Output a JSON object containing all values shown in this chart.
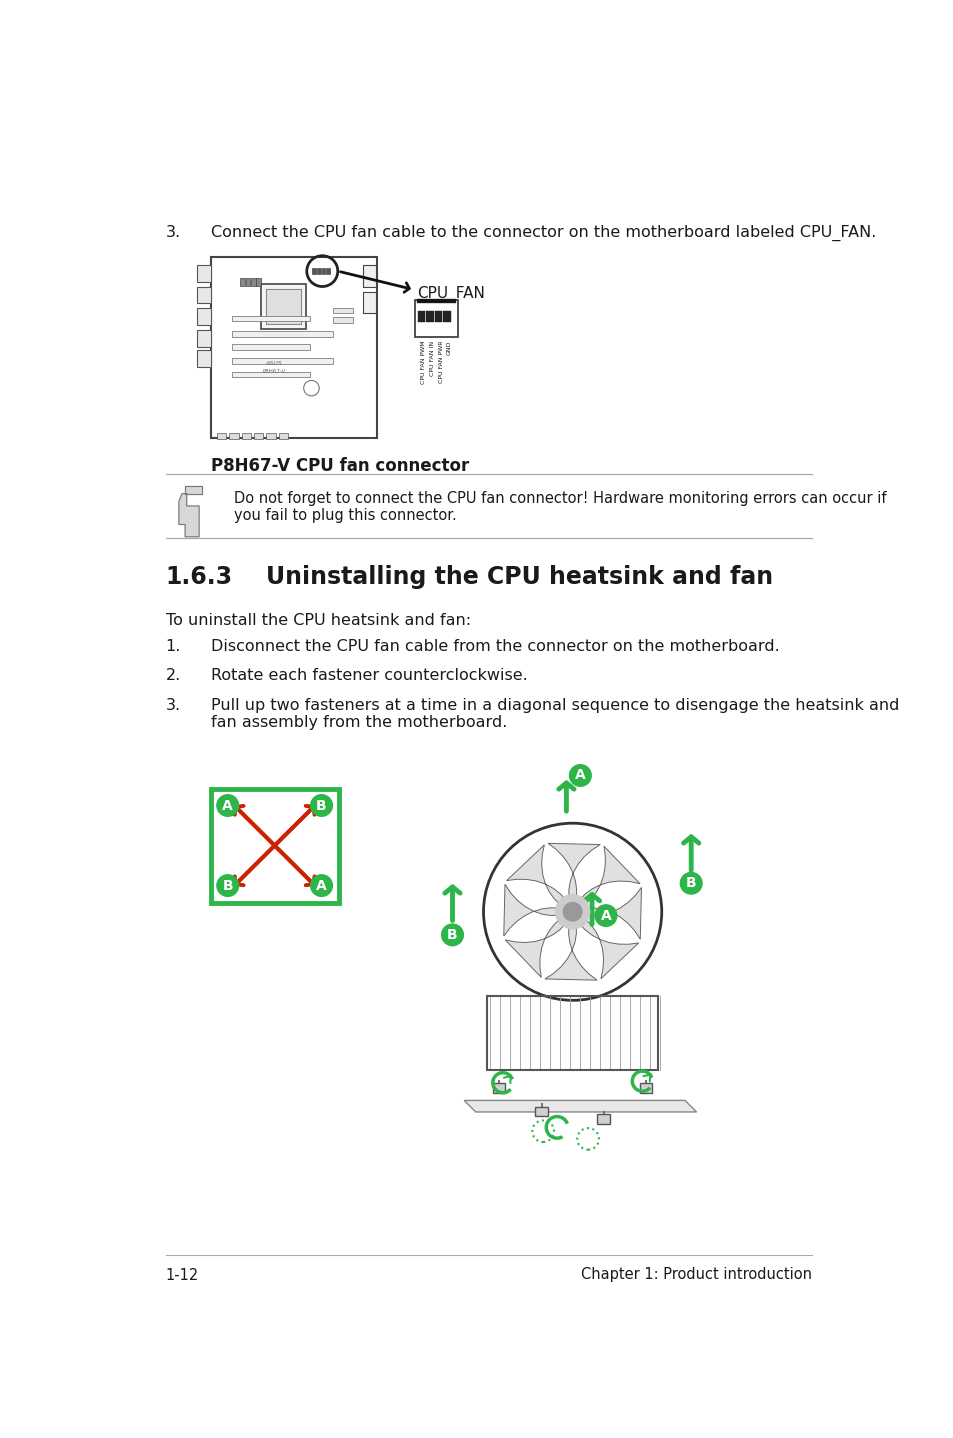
{
  "bg_color": "#ffffff",
  "dark_color": "#1a1a1a",
  "green_color": "#2db54a",
  "red_color": "#cc2200",
  "gray_line": "#aaaaaa",
  "step3_text": "Connect the CPU fan cable to the connector on the motherboard labeled CPU_FAN.",
  "cpu_fan_label": "CPU_FAN",
  "pin_labels": [
    "CPU FAN PWM",
    "CPU FAN IN",
    "CPU FAN PWR",
    "GND"
  ],
  "motherboard_caption": "P8H67-V CPU fan connector",
  "note_line1": "Do not forget to connect the CPU fan connector! Hardware monitoring errors can occur if",
  "note_line2": "you fail to plug this connector.",
  "heading_num": "1.6.3",
  "heading_text": "Uninstalling the CPU heatsink and fan",
  "intro": "To uninstall the CPU heatsink and fan:",
  "step1": "Disconnect the CPU fan cable from the connector on the motherboard.",
  "step2": "Rotate each fastener counterclockwise.",
  "step3a": "Pull up two fasteners at a time in a diagonal sequence to disengage the heatsink and",
  "step3b": "fan assembly from the motherboard.",
  "footer_left": "1-12",
  "footer_right": "Chapter 1: Product introduction"
}
